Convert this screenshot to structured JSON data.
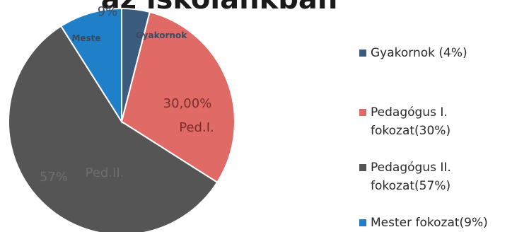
{
  "chart_data": {
    "type": "pie",
    "title": "az iskolánkban",
    "slices": [
      {
        "label": "Gyakornok",
        "value": 4,
        "color": "#3b5b7f",
        "data_label_value": "",
        "data_label_name": "Gyakornok"
      },
      {
        "label": "Pedagógus I. fokozat",
        "value": 30,
        "color": "#e06a66",
        "data_label_value": "30,00%",
        "data_label_name": "Ped.I."
      },
      {
        "label": "Pedagógus II. fokozat",
        "value": 57,
        "color": "#555555",
        "data_label_value": "57%",
        "data_label_name": "Ped.II."
      },
      {
        "label": "Mester fokozat",
        "value": 9,
        "color": "#1f7fc8",
        "data_label_value": "9%",
        "data_label_name": "Meste"
      }
    ],
    "legend": {
      "position": "right",
      "entries": [
        {
          "line1": "Gyakornok (4%)",
          "line2": "",
          "color": "#3b5b7f"
        },
        {
          "line1": "Pedagógus I.",
          "line2": "fokozat(30%)",
          "color": "#e06a66"
        },
        {
          "line1": "Pedagógus II.",
          "line2": "fokozat(57%)",
          "color": "#555555"
        },
        {
          "line1": "Mester fokozat(9%)",
          "line2": "",
          "color": "#1f7fc8"
        }
      ]
    }
  }
}
